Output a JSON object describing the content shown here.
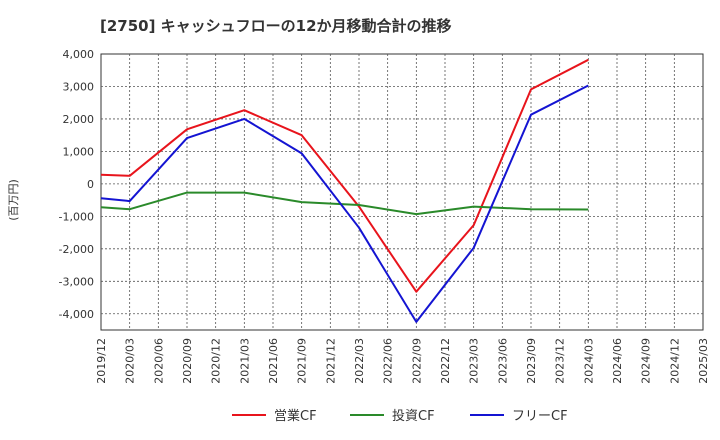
{
  "chart_data": {
    "type": "line",
    "title": "[2750]  キャッシュフローの12か月移動合計の推移",
    "ylabel": "(百万円)",
    "xlabel": "",
    "ylim": [
      -4500,
      4000
    ],
    "yticks": [
      4000,
      3000,
      2000,
      1000,
      0,
      -1000,
      -2000,
      -3000,
      -4000
    ],
    "ytick_labels": [
      "4,000",
      "3,000",
      "2,000",
      "1,000",
      "0",
      "-1,000",
      "-2,000",
      "-3,000",
      "-4,000"
    ],
    "categories": [
      "2019/12",
      "2020/03",
      "2020/06",
      "2020/09",
      "2020/12",
      "2021/03",
      "2021/06",
      "2021/09",
      "2021/12",
      "2022/03",
      "2022/06",
      "2022/09",
      "2022/12",
      "2023/03",
      "2023/06",
      "2023/09",
      "2023/12",
      "2024/03",
      "2024/06",
      "2024/09",
      "2024/12",
      "2025/03"
    ],
    "grid": true,
    "legend_position": "bottom",
    "series": [
      {
        "name": "営業CF",
        "color": "#e8141c",
        "points": [
          [
            0,
            280
          ],
          [
            1,
            250
          ],
          [
            3,
            1680
          ],
          [
            5,
            2270
          ],
          [
            7,
            1500
          ],
          [
            9,
            -700
          ],
          [
            11,
            -3320
          ],
          [
            13,
            -1270
          ],
          [
            15,
            2910
          ],
          [
            17,
            3820
          ]
        ]
      },
      {
        "name": "投資CF",
        "color": "#2a8a2a",
        "points": [
          [
            0,
            -720
          ],
          [
            1,
            -780
          ],
          [
            3,
            -270
          ],
          [
            5,
            -270
          ],
          [
            7,
            -560
          ],
          [
            9,
            -650
          ],
          [
            11,
            -930
          ],
          [
            13,
            -700
          ],
          [
            15,
            -780
          ],
          [
            17,
            -790
          ]
        ]
      },
      {
        "name": "フリーCF",
        "color": "#1414d2",
        "points": [
          [
            0,
            -440
          ],
          [
            1,
            -530
          ],
          [
            3,
            1410
          ],
          [
            5,
            2000
          ],
          [
            7,
            940
          ],
          [
            9,
            -1350
          ],
          [
            11,
            -4250
          ],
          [
            13,
            -1970
          ],
          [
            15,
            2130
          ],
          [
            17,
            3030
          ]
        ]
      }
    ]
  }
}
